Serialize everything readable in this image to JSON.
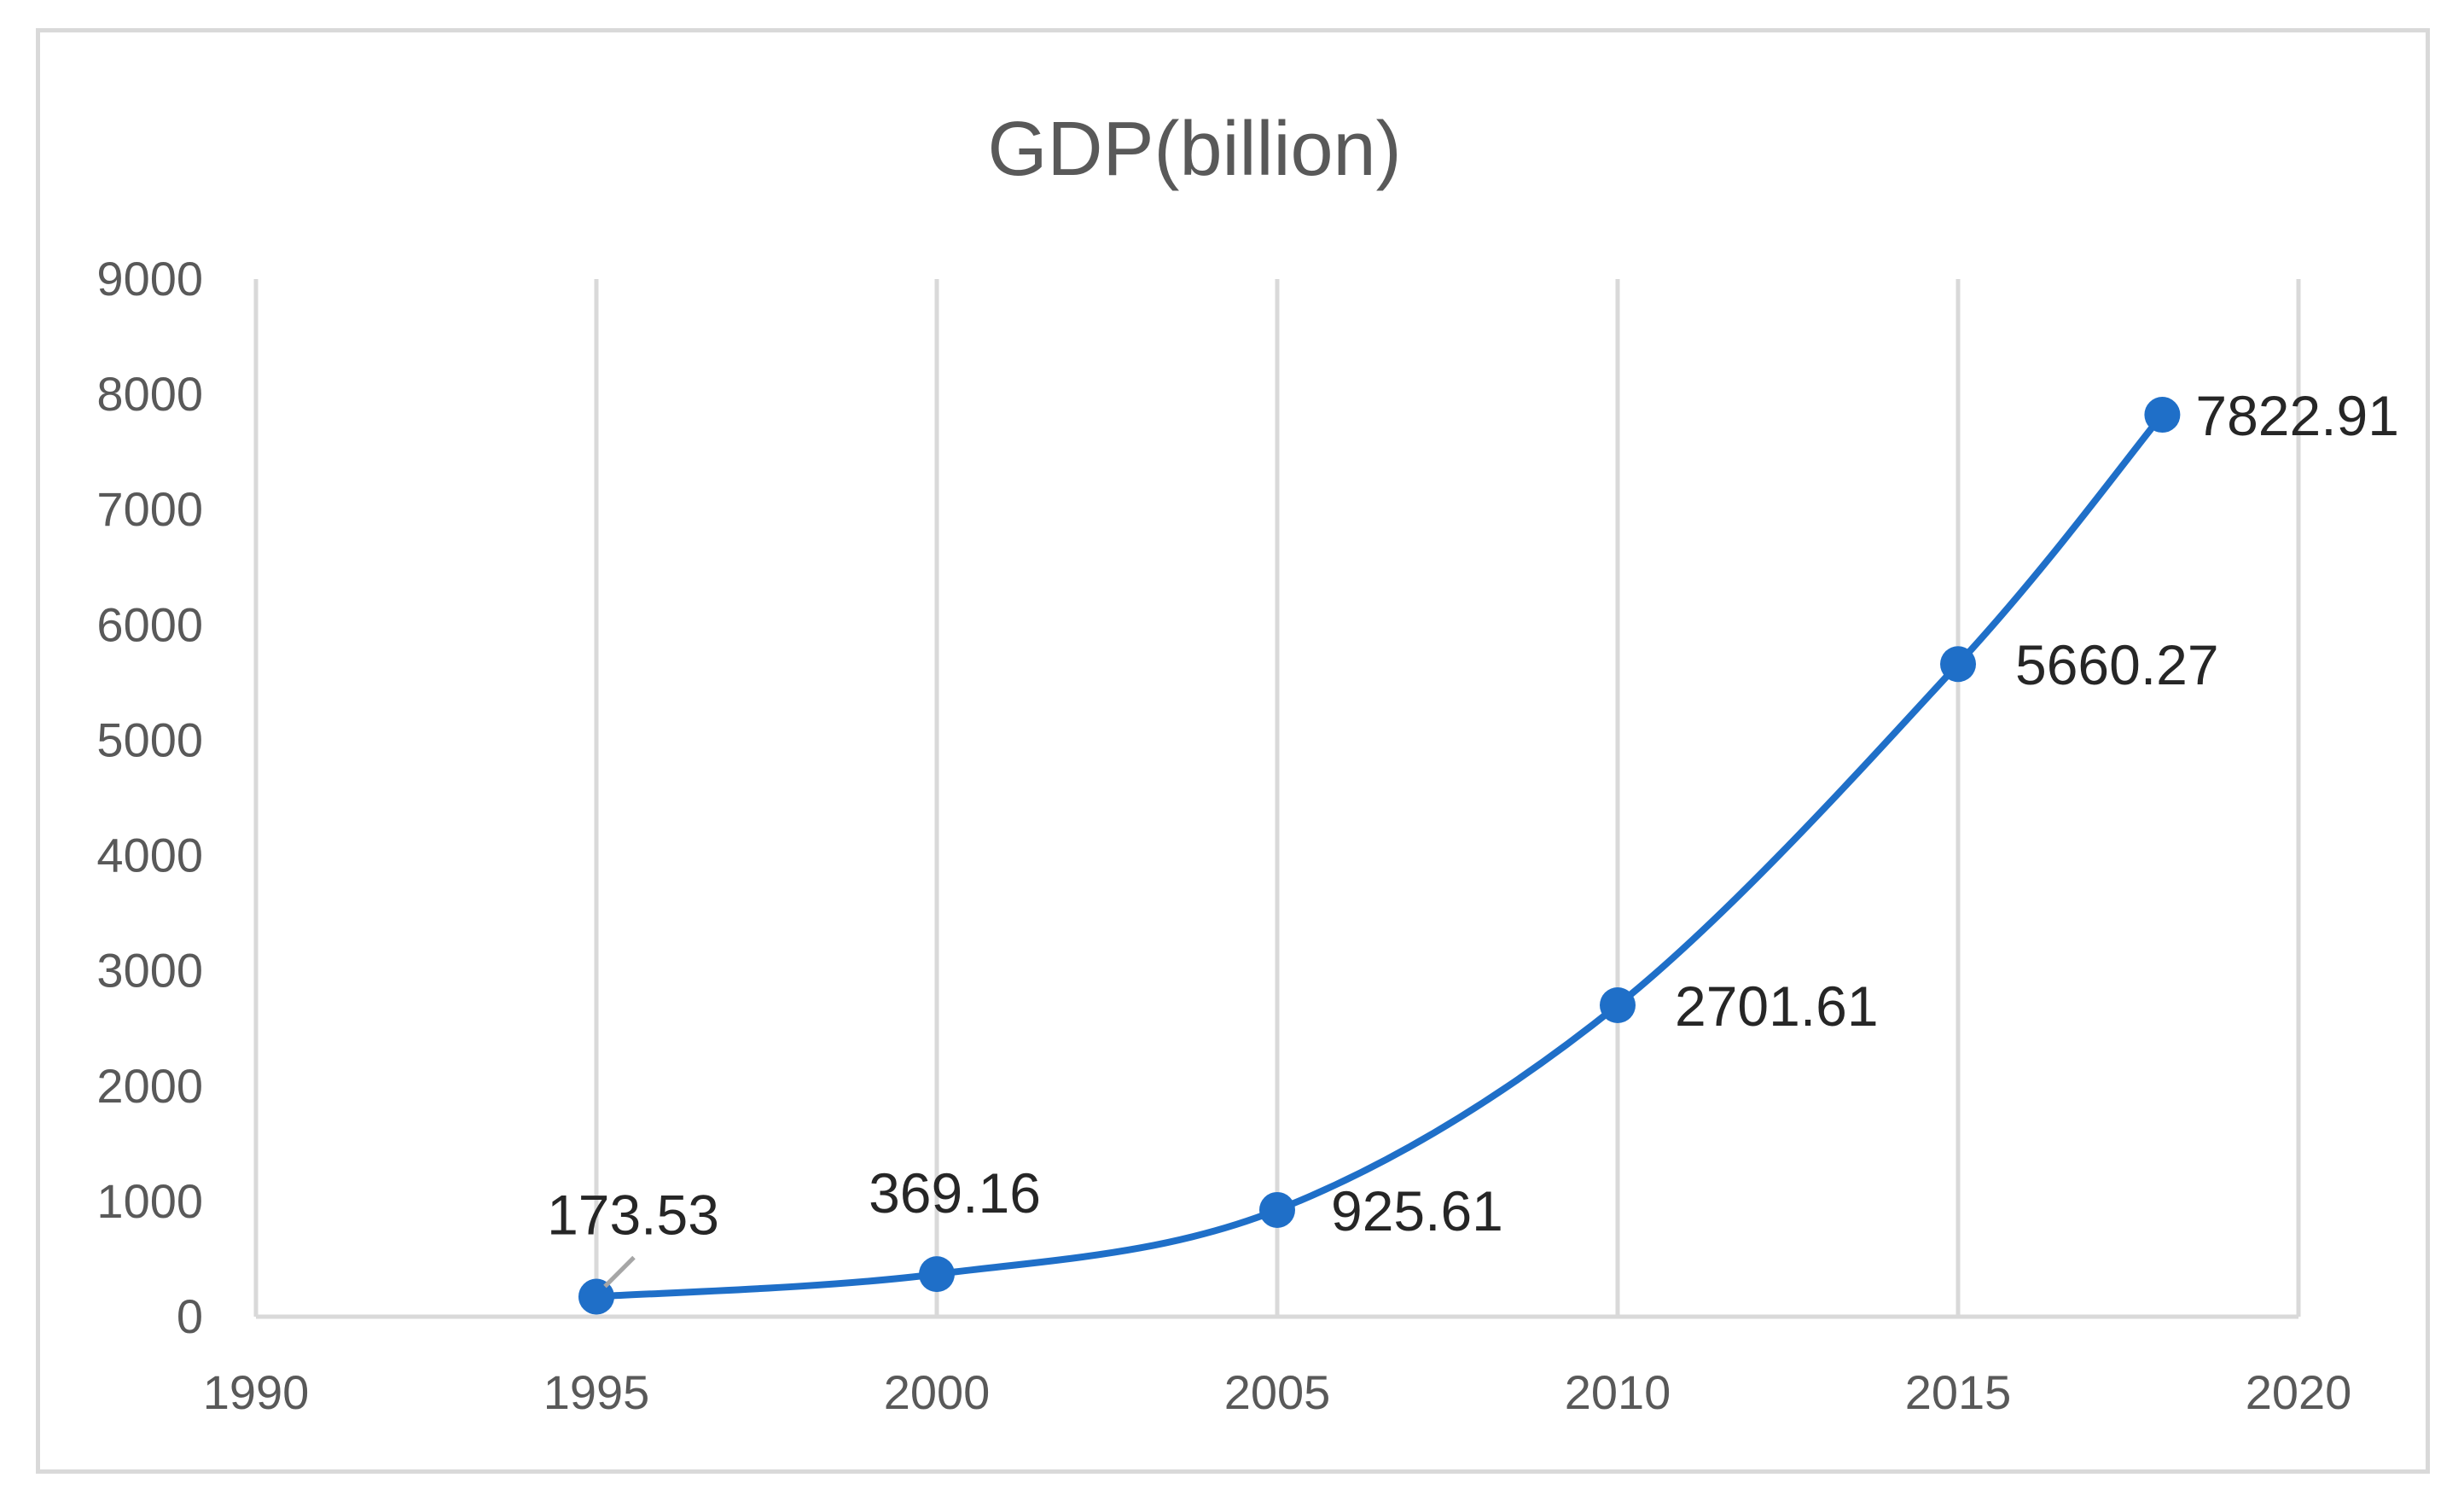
{
  "chart_data": {
    "type": "line",
    "title": "GDP(billion)",
    "xlabel": "",
    "ylabel": "",
    "x": [
      1995,
      2000,
      2005,
      2010,
      2015,
      2018
    ],
    "series": [
      {
        "name": "GDP(billion)",
        "values": [
          173.53,
          369.16,
          925.61,
          2701.61,
          5660.27,
          7822.91
        ]
      }
    ],
    "data_labels": [
      "173.53",
      "369.16",
      "925.61",
      "2701.61",
      "5660.27",
      "7822.91"
    ],
    "xlim": [
      1990,
      2020
    ],
    "ylim": [
      0,
      9000
    ],
    "xticks": [
      1990,
      1995,
      2000,
      2005,
      2010,
      2015,
      2020
    ],
    "xtick_labels": [
      "1990",
      "1995",
      "2000",
      "2005",
      "2010",
      "2015",
      "2020"
    ],
    "yticks": [
      0,
      1000,
      2000,
      3000,
      4000,
      5000,
      6000,
      7000,
      8000,
      9000
    ],
    "ytick_labels": [
      "0",
      "1000",
      "2000",
      "3000",
      "4000",
      "5000",
      "6000",
      "7000",
      "8000",
      "9000"
    ],
    "grid": "vertical",
    "smooth": true,
    "colors": {
      "line": "#1f6fc8",
      "marker": "#1f6fc8",
      "grid": "#d9d9d9",
      "axis": "#d9d9d9",
      "tick_text": "#595959",
      "label_text": "#262626",
      "leader_line": "#a6a6a6"
    }
  }
}
